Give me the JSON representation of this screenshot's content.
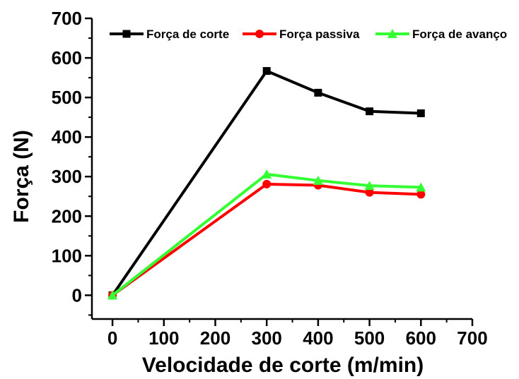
{
  "chart_data": {
    "type": "line",
    "title": "",
    "xlabel": "Velocidade de corte (m/min)",
    "ylabel": "Força (N)",
    "xlim": [
      -40,
      700
    ],
    "ylim": [
      -60,
      700
    ],
    "xticks": [
      0,
      100,
      200,
      300,
      400,
      500,
      600,
      700
    ],
    "yticks": [
      0,
      100,
      200,
      300,
      400,
      500,
      600,
      700
    ],
    "grid": false,
    "legend_position": "top",
    "series": [
      {
        "name": "Força de corte",
        "color": "#000000",
        "marker": "square",
        "x": [
          0,
          300,
          400,
          500,
          600
        ],
        "y": [
          0,
          567,
          512,
          465,
          460
        ]
      },
      {
        "name": "Força passiva",
        "color": "#ff0000",
        "marker": "circle",
        "x": [
          0,
          300,
          400,
          500,
          600
        ],
        "y": [
          0,
          281,
          278,
          260,
          255
        ]
      },
      {
        "name": "Força de avanço",
        "color": "#33ff33",
        "marker": "triangle",
        "x": [
          0,
          300,
          400,
          500,
          600
        ],
        "y": [
          0,
          306,
          290,
          277,
          273
        ]
      }
    ]
  }
}
